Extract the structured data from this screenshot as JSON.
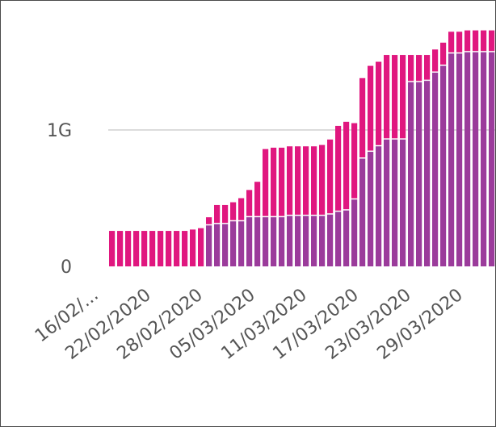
{
  "chart_data": {
    "type": "bar",
    "stacked": true,
    "title": "",
    "xlabel": "",
    "ylabel": "",
    "ylim": [
      0,
      1.7
    ],
    "grid": {
      "y": true,
      "x": false
    },
    "legend": "none",
    "y_ticks": [
      {
        "value": 0,
        "label": "0"
      },
      {
        "value": 1,
        "label": "1G"
      }
    ],
    "x_ticks": [
      "16/02/...",
      "22/02/2020",
      "28/02/2020",
      "05/03/2020",
      "11/03/2020",
      "17/03/2020",
      "23/03/2020",
      "29/03/2020"
    ],
    "colors": {
      "bottom": "#9b3b9b",
      "top": "#e0177f",
      "grid": "#dcdcdc",
      "divider": "#ffffff",
      "tick": "#555555"
    },
    "categories": [
      "16/02",
      "17/02",
      "18/02",
      "19/02",
      "20/02",
      "21/02",
      "22/02",
      "23/02",
      "24/02",
      "25/02",
      "26/02",
      "27/02",
      "28/02",
      "29/02",
      "01/03",
      "02/03",
      "03/03",
      "04/03",
      "05/03",
      "06/03",
      "07/03",
      "08/03",
      "09/03",
      "10/03",
      "11/03",
      "12/03",
      "13/03",
      "14/03",
      "15/03",
      "16/03",
      "17/03",
      "18/03",
      "19/03",
      "20/03",
      "21/03",
      "22/03",
      "23/03",
      "24/03",
      "25/03",
      "26/03",
      "27/03",
      "28/03",
      "29/03",
      "30/03",
      "31/03",
      "01/04",
      "02/04",
      "03/04",
      "04/04",
      "05/04"
    ],
    "series": [
      {
        "key": "bottom",
        "values": [
          0,
          0,
          0,
          0,
          0,
          0,
          0,
          0,
          0,
          0,
          0,
          0,
          0.3,
          0.31,
          0.31,
          0.33,
          0.33,
          0.36,
          0.36,
          0.36,
          0.36,
          0.36,
          0.37,
          0.37,
          0.37,
          0.37,
          0.37,
          0.38,
          0.4,
          0.41,
          0.49,
          0.79,
          0.84,
          0.88,
          0.93,
          0.93,
          0.93,
          1.35,
          1.35,
          1.36,
          1.42,
          1.47,
          1.56,
          1.56,
          1.57,
          1.57,
          1.57,
          1.57,
          1.57,
          1.57
        ]
      },
      {
        "key": "top",
        "values": [
          0.26,
          0.26,
          0.26,
          0.26,
          0.26,
          0.26,
          0.26,
          0.26,
          0.26,
          0.26,
          0.27,
          0.28,
          0.06,
          0.14,
          0.14,
          0.14,
          0.17,
          0.2,
          0.26,
          0.5,
          0.51,
          0.51,
          0.51,
          0.51,
          0.51,
          0.51,
          0.52,
          0.55,
          0.63,
          0.65,
          0.56,
          0.59,
          0.63,
          0.62,
          0.62,
          0.62,
          0.62,
          0.2,
          0.2,
          0.19,
          0.17,
          0.17,
          0.16,
          0.16,
          0.16,
          0.16,
          0.16,
          0.16,
          0.16,
          0.16
        ]
      }
    ]
  }
}
